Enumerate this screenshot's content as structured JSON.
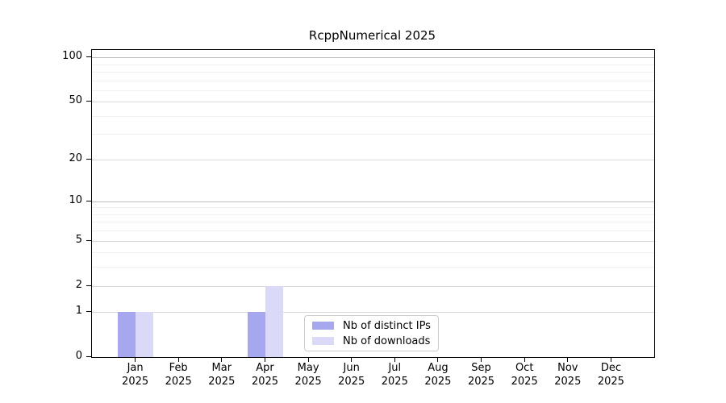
{
  "chart_data": {
    "type": "bar",
    "title": "RcppNumerical 2025",
    "categories": [
      "Jan",
      "Feb",
      "Mar",
      "Apr",
      "May",
      "Jun",
      "Jul",
      "Aug",
      "Sep",
      "Oct",
      "Nov",
      "Dec"
    ],
    "category_year": "2025",
    "series": [
      {
        "name": "Nb of distinct IPs",
        "color": "#a7a7f0",
        "values": [
          1,
          0,
          0,
          1,
          0,
          0,
          0,
          0,
          0,
          0,
          0,
          0
        ]
      },
      {
        "name": "Nb of downloads",
        "color": "#dadaf8",
        "values": [
          1,
          0,
          0,
          2,
          0,
          0,
          0,
          0,
          0,
          0,
          0,
          0
        ]
      }
    ],
    "yscale": "log1p",
    "ylim": [
      0,
      112
    ],
    "yticks": [
      0,
      1,
      2,
      5,
      10,
      20,
      50,
      100
    ],
    "minor_yticks": [
      3,
      4,
      6,
      7,
      8,
      9,
      30,
      40,
      60,
      70,
      80,
      90
    ],
    "emphasized_gridlines": [
      10,
      100
    ],
    "grid": true,
    "legend_position": "lower center (inside plot)",
    "xlabel": "",
    "ylabel": ""
  }
}
